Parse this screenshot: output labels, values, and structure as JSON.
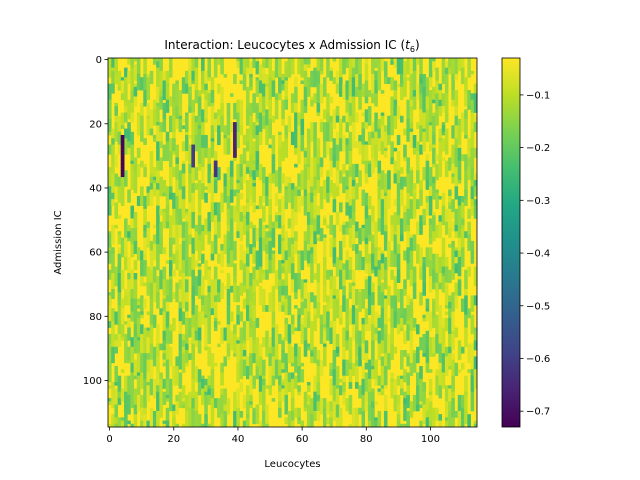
{
  "chart_data": {
    "type": "heatmap",
    "title_main": "Interaction: Leucocytes x Admission IC (",
    "title_var": "t",
    "title_sub": "6",
    "title_end": ")",
    "xlabel": "Leucocytes",
    "ylabel": "Admission IC",
    "n_cols": 115,
    "n_rows": 115,
    "xlim": [
      -0.5,
      114.5
    ],
    "ylim": [
      114.5,
      -0.5
    ],
    "x_ticks": [
      0,
      20,
      40,
      60,
      80,
      100
    ],
    "x_tick_labels": [
      "0",
      "20",
      "40",
      "60",
      "80",
      "100"
    ],
    "y_ticks": [
      0,
      20,
      40,
      60,
      80,
      100
    ],
    "y_tick_labels": [
      "0",
      "20",
      "40",
      "60",
      "80",
      "100"
    ],
    "colormap": "viridis",
    "color_range": [
      -0.73,
      -0.03
    ],
    "colorbar_ticks": [
      -0.1,
      -0.2,
      -0.3,
      -0.4,
      -0.5,
      -0.6,
      -0.7
    ],
    "colorbar_tick_labels": [
      "−0.1",
      "−0.2",
      "−0.3",
      "−0.4",
      "−0.5",
      "−0.6",
      "−0.7"
    ],
    "background_value": -0.03,
    "outlier_segments": [
      {
        "col": 4,
        "row_start": 24,
        "row_end": 36,
        "value": -0.72
      },
      {
        "col": 26,
        "row_start": 27,
        "row_end": 33,
        "value": -0.6
      },
      {
        "col": 33,
        "row_start": 32,
        "row_end": 36,
        "value": -0.62
      },
      {
        "col": 39,
        "row_start": 20,
        "row_end": 30,
        "value": -0.66
      }
    ]
  }
}
